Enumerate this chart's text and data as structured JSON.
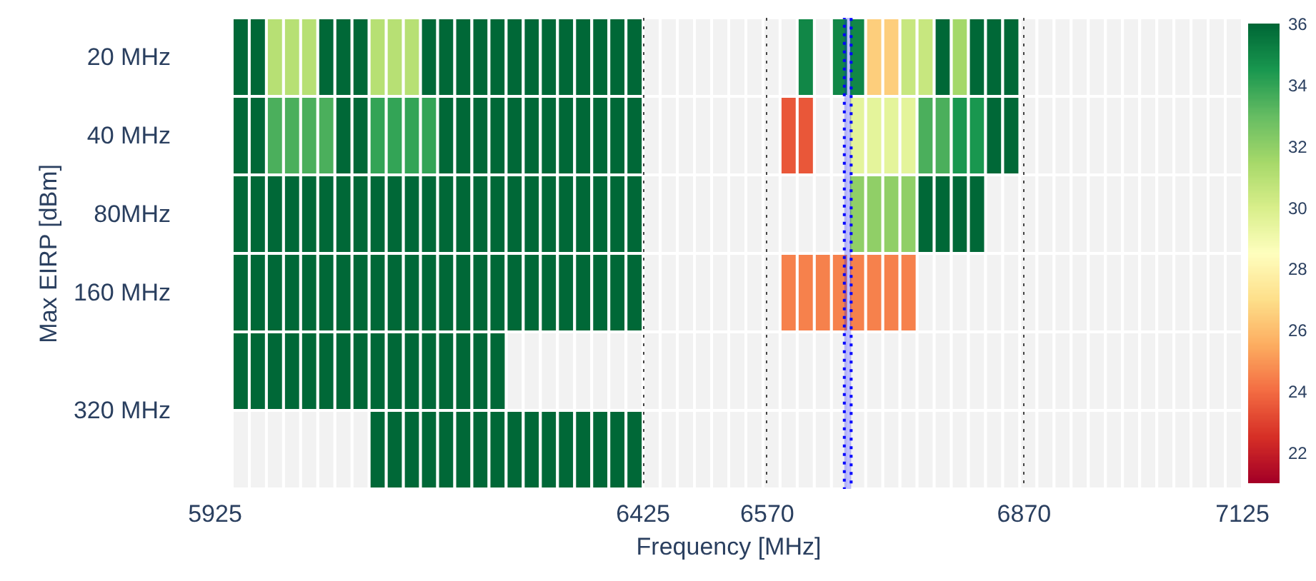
{
  "chart_data": {
    "type": "heatmap",
    "xlabel": "Frequency [MHz]",
    "ylabel": "Max EIRP [dBm]",
    "x": [
      5955,
      5975,
      5995,
      6015,
      6035,
      6055,
      6075,
      6095,
      6115,
      6135,
      6155,
      6175,
      6195,
      6215,
      6235,
      6255,
      6275,
      6295,
      6315,
      6335,
      6355,
      6375,
      6395,
      6415,
      6435,
      6455,
      6475,
      6495,
      6515,
      6535,
      6555,
      6575,
      6595,
      6615,
      6635,
      6655,
      6675,
      6695,
      6715,
      6735,
      6755,
      6775,
      6795,
      6815,
      6835,
      6855,
      6875,
      6895,
      6915,
      6935,
      6955,
      6975,
      6995,
      7015,
      7035,
      7055,
      7075,
      7095,
      7115
    ],
    "y_categories": [
      "20 MHz",
      "40 MHz",
      "80MHz",
      "160 MHz",
      "320 MHz",
      null
    ],
    "cells": [
      [
        36,
        36,
        31,
        31,
        31,
        36,
        36,
        36,
        31,
        31,
        31,
        36,
        36,
        36,
        36,
        36,
        36,
        36,
        36,
        36,
        36,
        36,
        36,
        36,
        null,
        null,
        null,
        null,
        null,
        null,
        null,
        null,
        null,
        35,
        null,
        35,
        35,
        26.5,
        26.5,
        30.5,
        30.5,
        36,
        31.5,
        36,
        36,
        36,
        null,
        null,
        null,
        null,
        null,
        null,
        null,
        null,
        null,
        null,
        null,
        null,
        null
      ],
      [
        36,
        36,
        33.5,
        33.5,
        33.5,
        33.5,
        36,
        36,
        34,
        34,
        34,
        34,
        36,
        36,
        36,
        36,
        36,
        36,
        36,
        36,
        36,
        36,
        36,
        36,
        null,
        null,
        null,
        null,
        null,
        null,
        null,
        null,
        23.5,
        23.5,
        null,
        null,
        29.5,
        29.5,
        29.5,
        29.5,
        33.5,
        33.5,
        34.5,
        34.5,
        36,
        36,
        null,
        null,
        null,
        null,
        null,
        null,
        null,
        null,
        null,
        null,
        null,
        null,
        null
      ],
      [
        36,
        36,
        36,
        36,
        36,
        36,
        36,
        36,
        36,
        36,
        36,
        36,
        36,
        36,
        36,
        36,
        36,
        36,
        36,
        36,
        36,
        36,
        36,
        36,
        null,
        null,
        null,
        null,
        null,
        null,
        null,
        null,
        null,
        null,
        null,
        null,
        32,
        32,
        32,
        32,
        36,
        36,
        36,
        36,
        null,
        null,
        null,
        null,
        null,
        null,
        null,
        null,
        null,
        null,
        null,
        null,
        null,
        null,
        null
      ],
      [
        36,
        36,
        36,
        36,
        36,
        36,
        36,
        36,
        36,
        36,
        36,
        36,
        36,
        36,
        36,
        36,
        36,
        36,
        36,
        36,
        36,
        36,
        36,
        36,
        null,
        null,
        null,
        null,
        null,
        null,
        null,
        null,
        24.5,
        24.5,
        24.5,
        24.5,
        24.5,
        24.5,
        24.5,
        24.5,
        null,
        null,
        null,
        null,
        null,
        null,
        null,
        null,
        null,
        null,
        null,
        null,
        null,
        null,
        null,
        null,
        null,
        null,
        null
      ],
      [
        36,
        36,
        36,
        36,
        36,
        36,
        36,
        36,
        36,
        36,
        36,
        36,
        36,
        36,
        36,
        36,
        null,
        null,
        null,
        null,
        null,
        null,
        null,
        null,
        null,
        null,
        null,
        null,
        null,
        null,
        null,
        null,
        null,
        null,
        null,
        null,
        null,
        null,
        null,
        null,
        null,
        null,
        null,
        null,
        null,
        null,
        null,
        null,
        null,
        null,
        null,
        null,
        null,
        null,
        null,
        null,
        null,
        null,
        null
      ],
      [
        null,
        null,
        null,
        null,
        null,
        null,
        null,
        null,
        36,
        36,
        36,
        36,
        36,
        36,
        36,
        36,
        36,
        36,
        36,
        36,
        36,
        36,
        36,
        36,
        null,
        null,
        null,
        null,
        null,
        null,
        null,
        null,
        null,
        null,
        null,
        null,
        null,
        null,
        null,
        null,
        null,
        null,
        null,
        null,
        null,
        null,
        null,
        null,
        null,
        null,
        null,
        null,
        null,
        null,
        null,
        null,
        null,
        null,
        null
      ]
    ],
    "xlim": [
      5925,
      7125
    ],
    "xticks": [
      5925,
      6425,
      6570,
      6870,
      7125
    ],
    "grid": "x",
    "clim": [
      21,
      36
    ],
    "cticks": [
      22,
      24,
      26,
      28,
      30,
      32,
      34,
      36
    ],
    "bands": [
      {
        "axis": "x",
        "from": 6660,
        "to": 6668,
        "color": "#0000ff"
      }
    ]
  }
}
